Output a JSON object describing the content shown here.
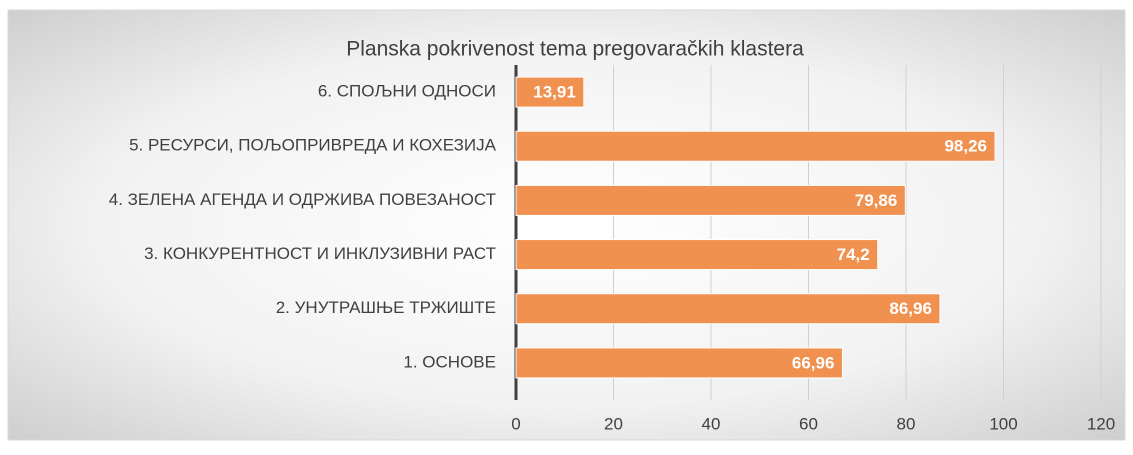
{
  "chart_data": {
    "type": "barh",
    "title": "Planska pokrivenost tema pregovaračkih klastera",
    "categories": [
      "6. СПОЉНИ ОДНОСИ",
      "5. РЕСУРСИ, ПОЉОПРИВРЕДА И КОХЕЗИЈА",
      "4. ЗЕЛЕНА АГЕНДА И ОДРЖИВА ПОВЕЗАНОСТ",
      "3. КОНКУРЕНТНОСТ И ИНКЛУЗИВНИ РАСТ",
      "2. УНУТРАШЊЕ ТРЖИШТЕ",
      "1. ОСНОВЕ"
    ],
    "values": [
      13.91,
      98.26,
      79.86,
      74.2,
      86.96,
      66.96
    ],
    "value_labels": [
      "13,91",
      "98,26",
      "79,86",
      "74,2",
      "86,96",
      "66,96"
    ],
    "color": "#f0914f",
    "xlim": [
      0,
      120
    ],
    "xticks": [
      0,
      20,
      40,
      60,
      80,
      100,
      120
    ],
    "grid": true
  }
}
